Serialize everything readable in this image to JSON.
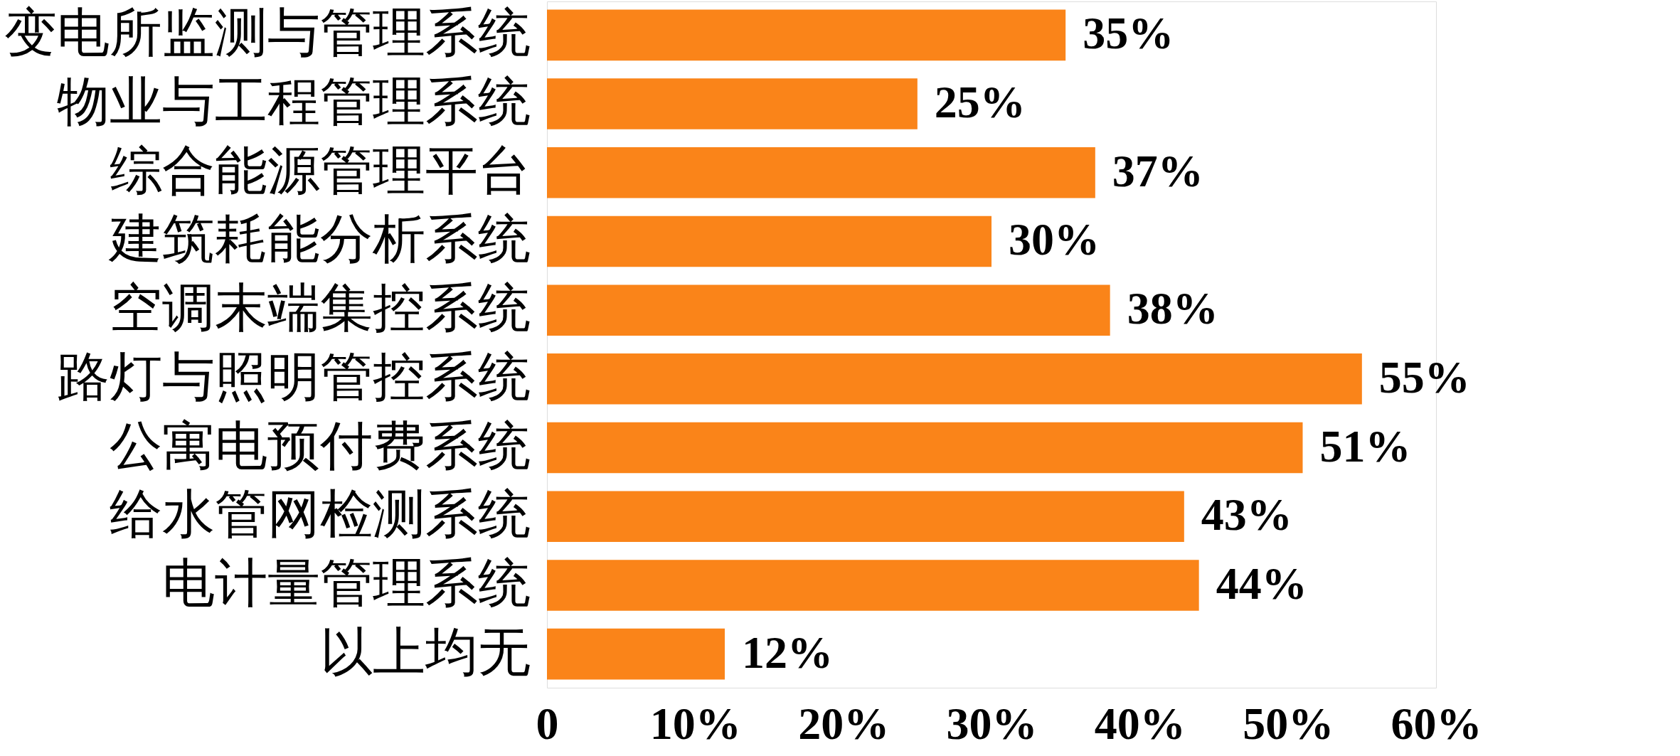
{
  "chart_data": {
    "type": "bar",
    "orientation": "horizontal",
    "categories": [
      "变电所监测与管理系统",
      "物业与工程管理系统",
      "综合能源管理平台",
      "建筑耗能分析系统",
      "空调末端集控系统",
      "路灯与照明管控系统",
      "公寓电预付费系统",
      "给水管网检测系统",
      "电计量管理系统",
      "以上均无"
    ],
    "values": [
      35,
      25,
      37,
      30,
      38,
      55,
      51,
      43,
      44,
      12
    ],
    "value_labels": [
      "35%",
      "25%",
      "37%",
      "30%",
      "38%",
      "55%",
      "51%",
      "43%",
      "44%",
      "12%"
    ],
    "color": "#fa8419",
    "xlim": [
      0,
      60
    ],
    "xticks": [
      0,
      {
        "value": 10,
        "label": "10%"
      },
      {
        "value": 20,
        "label": "20%"
      },
      {
        "value": 30,
        "label": "30%"
      },
      {
        "value": 40,
        "label": "40%"
      },
      {
        "value": 50,
        "label": "50%"
      },
      {
        "value": 60,
        "label": "60%"
      }
    ],
    "grid": false
  }
}
